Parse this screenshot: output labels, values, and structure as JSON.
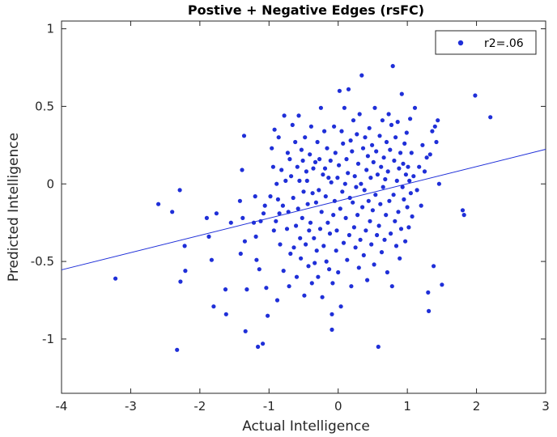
{
  "chart_data": {
    "type": "scatter",
    "title": "Postive + Negative Edges (rsFC)",
    "xlabel": "Actual Intelligence",
    "ylabel": "Predicted Intelligence",
    "xlim": [
      -4,
      3
    ],
    "ylim": [
      -1.35,
      1.05
    ],
    "xticks": [
      -4,
      -3,
      -2,
      -1,
      0,
      1,
      2,
      3
    ],
    "xtick_labels": [
      "-4",
      "-3",
      "-2",
      "-1",
      "0",
      "1",
      "2",
      "3"
    ],
    "yticks": [
      -1,
      -0.5,
      0,
      0.5,
      1
    ],
    "ytick_labels": [
      "-1",
      "-0.5",
      "0",
      "0.5",
      "1"
    ],
    "grid": false,
    "legend_position": "top-right",
    "series": [
      {
        "name": "r2=.06",
        "color": "#1f2fd8",
        "marker": "dot",
        "points": [
          [
            -3.22,
            -0.61
          ],
          [
            -2.6,
            -0.13
          ],
          [
            -2.4,
            -0.18
          ],
          [
            -2.33,
            -1.07
          ],
          [
            -2.29,
            -0.04
          ],
          [
            -2.28,
            -0.63
          ],
          [
            -2.22,
            -0.4
          ],
          [
            -2.21,
            -0.56
          ],
          [
            -1.9,
            -0.22
          ],
          [
            -1.87,
            -0.34
          ],
          [
            -1.83,
            -0.49
          ],
          [
            -1.8,
            -0.79
          ],
          [
            -1.76,
            -0.19
          ],
          [
            -1.63,
            -0.68
          ],
          [
            -1.62,
            -0.84
          ],
          [
            -1.55,
            -0.25
          ],
          [
            -1.42,
            -0.11
          ],
          [
            -1.41,
            -0.45
          ],
          [
            -1.39,
            0.09
          ],
          [
            -1.38,
            -0.22
          ],
          [
            -1.36,
            0.31
          ],
          [
            -1.35,
            -0.37
          ],
          [
            -1.34,
            -0.95
          ],
          [
            -1.32,
            -0.68
          ],
          [
            -1.22,
            -0.25
          ],
          [
            -1.2,
            -0.08
          ],
          [
            -1.19,
            -0.34
          ],
          [
            -1.18,
            -0.49
          ],
          [
            -1.16,
            -1.05
          ],
          [
            -1.14,
            -0.55
          ],
          [
            -1.12,
            -0.24
          ],
          [
            -1.09,
            -1.03
          ],
          [
            -1.08,
            -0.19
          ],
          [
            -1.06,
            -0.14
          ],
          [
            -1.04,
            -0.67
          ],
          [
            -1.02,
            -0.85
          ],
          [
            -0.98,
            -0.08
          ],
          [
            -0.96,
            0.23
          ],
          [
            -0.94,
            0.11
          ],
          [
            -0.93,
            -0.3
          ],
          [
            -0.92,
            0.35
          ],
          [
            -0.9,
            -0.24
          ],
          [
            -0.89,
            0.0
          ],
          [
            -0.88,
            -0.75
          ],
          [
            -0.87,
            -0.1
          ],
          [
            -0.86,
            0.3
          ],
          [
            -0.85,
            -0.19
          ],
          [
            -0.84,
            -0.39
          ],
          [
            -0.82,
            0.09
          ],
          [
            -0.8,
            -0.14
          ],
          [
            -0.79,
            -0.56
          ],
          [
            -0.78,
            0.44
          ],
          [
            -0.76,
            0.02
          ],
          [
            -0.74,
            -0.29
          ],
          [
            -0.73,
            0.2
          ],
          [
            -0.72,
            -0.18
          ],
          [
            -0.71,
            -0.66
          ],
          [
            -0.7,
            0.16
          ],
          [
            -0.69,
            -0.45
          ],
          [
            -0.68,
            0.05
          ],
          [
            -0.66,
            0.38
          ],
          [
            -0.65,
            -0.09
          ],
          [
            -0.64,
            -0.41
          ],
          [
            -0.62,
            0.27
          ],
          [
            -0.61,
            -0.27
          ],
          [
            -0.6,
            -0.6
          ],
          [
            -0.59,
            0.11
          ],
          [
            -0.58,
            -0.16
          ],
          [
            -0.57,
            0.44
          ],
          [
            -0.56,
            0.02
          ],
          [
            -0.55,
            -0.35
          ],
          [
            -0.54,
            -0.48
          ],
          [
            -0.53,
            0.22
          ],
          [
            -0.52,
            -0.22
          ],
          [
            -0.51,
            0.15
          ],
          [
            -0.5,
            -0.05
          ],
          [
            -0.49,
            -0.72
          ],
          [
            -0.48,
            0.3
          ],
          [
            -0.47,
            -0.39
          ],
          [
            -0.46,
            0.08
          ],
          [
            -0.45,
            0.02
          ],
          [
            -0.44,
            -0.13
          ],
          [
            -0.43,
            -0.53
          ],
          [
            -0.42,
            -0.3
          ],
          [
            -0.41,
            0.19
          ],
          [
            -0.4,
            -0.25
          ],
          [
            -0.39,
            0.37
          ],
          [
            -0.38,
            -0.64
          ],
          [
            -0.37,
            -0.06
          ],
          [
            -0.36,
            0.1
          ],
          [
            -0.35,
            -0.35
          ],
          [
            -0.34,
            -0.51
          ],
          [
            -0.33,
            0.14
          ],
          [
            -0.32,
            -0.12
          ],
          [
            -0.31,
            -0.43
          ],
          [
            -0.3,
            0.27
          ],
          [
            -0.29,
            -0.6
          ],
          [
            -0.28,
            -0.04
          ],
          [
            -0.27,
            0.16
          ],
          [
            -0.26,
            -0.29
          ],
          [
            -0.25,
            0.49
          ],
          [
            -0.24,
            -0.18
          ],
          [
            -0.23,
            -0.73
          ],
          [
            -0.22,
            0.06
          ],
          [
            -0.21,
            -0.4
          ],
          [
            -0.2,
            0.34
          ],
          [
            -0.19,
            0.1
          ],
          [
            -0.18,
            -0.08
          ],
          [
            -0.17,
            -0.5
          ],
          [
            -0.16,
            0.23
          ],
          [
            -0.15,
            -0.25
          ],
          [
            -0.14,
            0.04
          ],
          [
            -0.13,
            -0.55
          ],
          [
            -0.12,
            -0.32
          ],
          [
            -0.11,
            0.15
          ],
          [
            -0.1,
            0.01
          ],
          [
            -0.09,
            -0.94
          ],
          [
            -0.09,
            -0.84
          ],
          [
            -0.08,
            -0.64
          ],
          [
            -0.07,
            -0.2
          ],
          [
            -0.06,
            0.37
          ],
          [
            -0.05,
            -0.11
          ],
          [
            -0.04,
            0.2
          ],
          [
            -0.03,
            -0.43
          ],
          [
            -0.02,
            -0.3
          ],
          [
            -0.01,
            0.04
          ],
          [
            0.0,
            -0.57
          ],
          [
            0.01,
            0.12
          ],
          [
            0.02,
            0.6
          ],
          [
            0.03,
            -0.16
          ],
          [
            0.04,
            -0.79
          ],
          [
            0.05,
            0.34
          ],
          [
            0.06,
            -0.05
          ],
          [
            0.07,
            0.26
          ],
          [
            0.08,
            -0.38
          ],
          [
            0.09,
            0.49
          ],
          [
            0.1,
            0.0
          ],
          [
            0.11,
            -0.22
          ],
          [
            0.12,
            0.16
          ],
          [
            0.13,
            -0.49
          ],
          [
            0.14,
            0.07
          ],
          [
            0.15,
            0.61
          ],
          [
            0.16,
            -0.33
          ],
          [
            0.17,
            -0.09
          ],
          [
            0.18,
            0.28
          ],
          [
            0.19,
            -0.66
          ],
          [
            0.2,
            0.21
          ],
          [
            0.21,
            -0.12
          ],
          [
            0.22,
            0.41
          ],
          [
            0.23,
            -0.28
          ],
          [
            0.24,
            0.05
          ],
          [
            0.25,
            -0.41
          ],
          [
            0.26,
            -0.02
          ],
          [
            0.27,
            0.32
          ],
          [
            0.28,
            -0.2
          ],
          [
            0.29,
            0.13
          ],
          [
            0.3,
            -0.54
          ],
          [
            0.31,
            0.45
          ],
          [
            0.32,
            -0.36
          ],
          [
            0.33,
            0.0
          ],
          [
            0.34,
            0.7
          ],
          [
            0.35,
            -0.15
          ],
          [
            0.36,
            0.23
          ],
          [
            0.37,
            -0.46
          ],
          [
            0.38,
            -0.04
          ],
          [
            0.39,
            0.3
          ],
          [
            0.4,
            -0.3
          ],
          [
            0.41,
            0.09
          ],
          [
            0.42,
            -0.62
          ],
          [
            0.43,
            0.18
          ],
          [
            0.44,
            -0.11
          ],
          [
            0.45,
            0.36
          ],
          [
            0.46,
            -0.24
          ],
          [
            0.47,
            0.04
          ],
          [
            0.48,
            -0.39
          ],
          [
            0.49,
            0.25
          ],
          [
            0.5,
            -0.17
          ],
          [
            0.51,
            0.14
          ],
          [
            0.52,
            -0.52
          ],
          [
            0.53,
            0.49
          ],
          [
            0.54,
            -0.07
          ],
          [
            0.55,
            0.21
          ],
          [
            0.56,
            -0.33
          ],
          [
            0.57,
            0.06
          ],
          [
            0.58,
            -1.05
          ],
          [
            0.59,
            -0.27
          ],
          [
            0.6,
            0.31
          ],
          [
            0.61,
            -0.13
          ],
          [
            0.62,
            0.11
          ],
          [
            0.63,
            -0.44
          ],
          [
            0.64,
            0.41
          ],
          [
            0.65,
            -0.02
          ],
          [
            0.66,
            0.17
          ],
          [
            0.67,
            -0.36
          ],
          [
            0.68,
            0.03
          ],
          [
            0.69,
            -0.2
          ],
          [
            0.7,
            0.27
          ],
          [
            0.71,
            -0.57
          ],
          [
            0.72,
            0.08
          ],
          [
            0.73,
            0.45
          ],
          [
            0.74,
            -0.11
          ],
          [
            0.75,
            0.22
          ],
          [
            0.76,
            -0.32
          ],
          [
            0.77,
            0.38
          ],
          [
            0.78,
            -0.66
          ],
          [
            0.79,
            0.76
          ],
          [
            0.8,
            -0.07
          ],
          [
            0.81,
            0.15
          ],
          [
            0.82,
            -0.24
          ],
          [
            0.83,
            0.3
          ],
          [
            0.84,
            -0.4
          ],
          [
            0.85,
            0.02
          ],
          [
            0.86,
            0.4
          ],
          [
            0.87,
            -0.18
          ],
          [
            0.88,
            0.1
          ],
          [
            0.89,
            -0.48
          ],
          [
            0.9,
            0.2
          ],
          [
            0.91,
            -0.29
          ],
          [
            0.92,
            0.58
          ],
          [
            0.93,
            -0.02
          ],
          [
            0.94,
            0.13
          ],
          [
            0.95,
            -0.1
          ],
          [
            0.96,
            0.26
          ],
          [
            0.97,
            -0.37
          ],
          [
            0.98,
            0.06
          ],
          [
            0.99,
            0.33
          ],
          [
            1.0,
            -0.15
          ],
          [
            1.01,
            0.11
          ],
          [
            1.02,
            -0.28
          ],
          [
            1.03,
            0.02
          ],
          [
            1.04,
            0.42
          ],
          [
            1.05,
            -0.06
          ],
          [
            1.06,
            0.2
          ],
          [
            1.07,
            -0.21
          ],
          [
            1.09,
            0.05
          ],
          [
            1.11,
            0.49
          ],
          [
            1.14,
            -0.04
          ],
          [
            1.17,
            0.11
          ],
          [
            1.2,
            -0.14
          ],
          [
            1.22,
            0.25
          ],
          [
            1.25,
            0.08
          ],
          [
            1.28,
            0.17
          ],
          [
            1.3,
            -0.7
          ],
          [
            1.31,
            -0.82
          ],
          [
            1.33,
            0.19
          ],
          [
            1.36,
            0.34
          ],
          [
            1.38,
            -0.53
          ],
          [
            1.4,
            0.37
          ],
          [
            1.42,
            0.27
          ],
          [
            1.44,
            0.41
          ],
          [
            1.46,
            0.0
          ],
          [
            1.5,
            -0.65
          ],
          [
            1.8,
            -0.17
          ],
          [
            1.82,
            -0.2
          ],
          [
            1.98,
            0.57
          ],
          [
            2.2,
            0.43
          ]
        ]
      }
    ],
    "fit_line": {
      "slope": 0.111,
      "intercept": -0.11,
      "color": "#1f2fd8"
    }
  }
}
